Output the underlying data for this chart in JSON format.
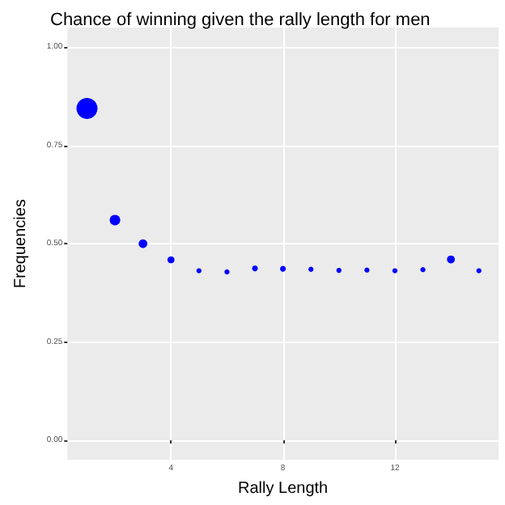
{
  "chart_data": {
    "type": "bubble",
    "title": "Chance of winning given the rally length for men",
    "xlabel": "Rally Length",
    "ylabel": "Frequencies",
    "x": [
      1,
      2,
      3,
      4,
      5,
      6,
      7,
      8,
      9,
      10,
      11,
      12,
      13,
      14,
      15
    ],
    "series": [
      {
        "color": "#0000ff",
        "values": [
          0.844,
          0.56,
          0.5,
          0.459,
          0.431,
          0.428,
          0.437,
          0.436,
          0.435,
          0.432,
          0.433,
          0.431,
          0.434,
          0.46,
          0.431
        ],
        "sizes": [
          1,
          0.25,
          0.17,
          0.11,
          0.06,
          0.06,
          0.075,
          0.075,
          0.06,
          0.06,
          0.06,
          0.06,
          0.06,
          0.14,
          0.06
        ]
      }
    ],
    "xlim": [
      0.3,
      15.7
    ],
    "xticks": [
      4,
      8,
      12
    ],
    "ylim": [
      -0.05,
      1.05
    ],
    "yticks": [
      {
        "value": 0,
        "label": "0.00"
      },
      {
        "value": 0.25,
        "label": "0.25"
      },
      {
        "value": 0.5,
        "label": "0.50"
      },
      {
        "value": 0.75,
        "label": "0.75"
      },
      {
        "value": 1,
        "label": "1.00"
      }
    ],
    "grid": true,
    "marker": "circle"
  }
}
